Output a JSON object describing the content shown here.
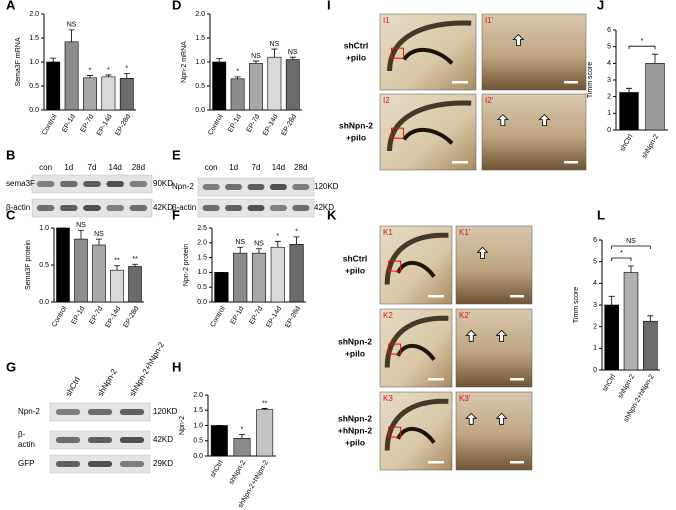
{
  "chart_data": [
    {
      "type": "bar",
      "panel": "A",
      "ylabel": "Sema3F mRNA",
      "categories": [
        "Control",
        "EP-1d",
        "EP-7d",
        "EP-14d",
        "EP-28d"
      ],
      "values": [
        1.0,
        1.42,
        0.67,
        0.69,
        0.66
      ],
      "errors": [
        0.08,
        0.25,
        0.05,
        0.04,
        0.1
      ],
      "annotations": [
        null,
        "NS",
        "*",
        "*",
        "*"
      ],
      "colors": [
        "#000000",
        "#8c8c8c",
        "#a8a8a8",
        "#d9d9d9",
        "#6b6b6b"
      ],
      "ylim": [
        0,
        2.0
      ],
      "yticks": [
        {
          "value": 0,
          "label": "0.0"
        },
        {
          "value": 0.5,
          "label": "0.5"
        },
        {
          "value": 1.0,
          "label": "1.0"
        },
        {
          "value": 1.5,
          "label": "1.5"
        },
        {
          "value": 2.0,
          "label": "2.0"
        }
      ]
    },
    {
      "type": "bar",
      "panel": "D",
      "ylabel": "Npn-2 mRNA",
      "categories": [
        "Control",
        "EP-1d",
        "EP-7d",
        "EP-14d",
        "EP-28d"
      ],
      "values": [
        1.0,
        0.65,
        0.97,
        1.1,
        1.05
      ],
      "errors": [
        0.07,
        0.04,
        0.05,
        0.17,
        0.05
      ],
      "annotations": [
        null,
        "*",
        "NS",
        "NS",
        "NS"
      ],
      "colors": [
        "#000000",
        "#8c8c8c",
        "#a8a8a8",
        "#d9d9d9",
        "#6b6b6b"
      ],
      "ylim": [
        0,
        2.0
      ],
      "yticks": [
        {
          "value": 0,
          "label": "0.0"
        },
        {
          "value": 0.5,
          "label": "0.5"
        },
        {
          "value": 1.0,
          "label": "1.0"
        },
        {
          "value": 1.5,
          "label": "1.5"
        },
        {
          "value": 2.0,
          "label": "2.0"
        }
      ]
    },
    {
      "type": "bar",
      "panel": "C",
      "ylabel": "Sema3F protein",
      "categories": [
        "Control",
        "EP-1d",
        "EP-7d",
        "EP-14d",
        "EP-28d"
      ],
      "values": [
        1.0,
        0.85,
        0.77,
        0.43,
        0.48
      ],
      "errors": [
        0,
        0.12,
        0.08,
        0.06,
        0.03
      ],
      "annotations": [
        null,
        "NS",
        "NS",
        "**",
        "**"
      ],
      "colors": [
        "#000000",
        "#8c8c8c",
        "#a8a8a8",
        "#d9d9d9",
        "#6b6b6b"
      ],
      "ylim": [
        0,
        1.0
      ],
      "yticks": [
        {
          "value": 0,
          "label": "0.0"
        },
        {
          "value": 0.5,
          "label": "0.5"
        },
        {
          "value": 1.0,
          "label": "1.0"
        }
      ]
    },
    {
      "type": "bar",
      "panel": "F",
      "ylabel": "Npn-2 protein",
      "categories": [
        "Control",
        "EP-1d",
        "EP-7d",
        "EP-14d",
        "EP-28d"
      ],
      "values": [
        1.0,
        1.65,
        1.65,
        1.85,
        1.95
      ],
      "errors": [
        0,
        0.2,
        0.15,
        0.2,
        0.25
      ],
      "annotations": [
        null,
        "NS",
        "NS",
        "*",
        "*"
      ],
      "colors": [
        "#000000",
        "#8c8c8c",
        "#a8a8a8",
        "#d9d9d9",
        "#6b6b6b"
      ],
      "ylim": [
        0,
        2.5
      ],
      "yticks": [
        {
          "value": 0,
          "label": "0.0"
        },
        {
          "value": 0.5,
          "label": "0.5"
        },
        {
          "value": 1.0,
          "label": "1.0"
        },
        {
          "value": 1.5,
          "label": "1.5"
        },
        {
          "value": 2.0,
          "label": "2.0"
        },
        {
          "value": 2.5,
          "label": "2.5"
        }
      ]
    },
    {
      "type": "bar",
      "panel": "H",
      "ylabel": "Npn-2",
      "categories": [
        "shCtrl",
        "shNpn-2",
        "shNpn-2+hNpn-2"
      ],
      "values": [
        1.0,
        0.58,
        1.52
      ],
      "errors": [
        0,
        0.12,
        0.04
      ],
      "annotations": [
        null,
        "*",
        "**"
      ],
      "colors": [
        "#000000",
        "#8c8c8c",
        "#c4c4c4"
      ],
      "ylim": [
        0,
        2.0
      ],
      "yticks": [
        {
          "value": 0,
          "label": "0.0"
        },
        {
          "value": 0.5,
          "label": "0.5"
        },
        {
          "value": 1.0,
          "label": "1.0"
        },
        {
          "value": 1.5,
          "label": "1.5"
        },
        {
          "value": 2.0,
          "label": "2.0"
        }
      ]
    },
    {
      "type": "bar",
      "panel": "J",
      "ylabel": "Timm score",
      "categories": [
        "shCtrl",
        "shNpn-2"
      ],
      "values": [
        2.25,
        4.0
      ],
      "errors": [
        0.25,
        0.55
      ],
      "colors": [
        "#000000",
        "#9a9a9a"
      ],
      "ylim": [
        0,
        6
      ],
      "yticks": [
        0,
        1,
        2,
        3,
        4,
        5,
        6
      ],
      "brackets": [
        {
          "from": 0,
          "to": 1,
          "label": "*"
        }
      ]
    },
    {
      "type": "bar",
      "panel": "L",
      "ylabel": "Timm score",
      "categories": [
        "shCtrl",
        "shNpn-2",
        "shNpn-2+hNpn-2"
      ],
      "values": [
        3.0,
        4.5,
        2.25
      ],
      "errors": [
        0.4,
        0.3,
        0.25
      ],
      "colors": [
        "#000000",
        "#b0b0b0",
        "#6b6b6b"
      ],
      "ylim": [
        0,
        6
      ],
      "yticks": [
        0,
        1,
        2,
        3,
        4,
        5,
        6
      ],
      "brackets": [
        {
          "from": 0,
          "to": 1,
          "label": "*"
        },
        {
          "from": 0,
          "to": 2,
          "label": "NS"
        }
      ]
    }
  ],
  "blots": [
    {
      "panel": "B",
      "lanes": [
        "con",
        "1d",
        "7d",
        "14d",
        "28d"
      ],
      "rows": [
        {
          "name": "sema3F",
          "size": "90KD"
        },
        {
          "name": "β-actin",
          "size": "42KD"
        }
      ]
    },
    {
      "panel": "E",
      "lanes": [
        "con",
        "1d",
        "7d",
        "14d",
        "28d"
      ],
      "rows": [
        {
          "name": "Npn-2",
          "size": "120KD"
        },
        {
          "name": "β-actin",
          "size": "42KD"
        }
      ]
    },
    {
      "panel": "G",
      "lanes": [
        "shCtrl",
        "shNpn-2",
        "shNpn-2+hNpn-2"
      ],
      "rows": [
        {
          "name": [
            "Npn-2"
          ],
          "size": "120KD"
        },
        {
          "name": [
            "β-",
            "actin"
          ],
          "size": "42KD"
        },
        {
          "name": [
            "GFP"
          ],
          "size": "29KD"
        }
      ]
    }
  ],
  "micrographs": [
    {
      "panel": "I",
      "rows": [
        {
          "condition": [
            "shCtrl",
            "+pilo"
          ],
          "labels": [
            "I1",
            "I1'"
          ]
        },
        {
          "condition": [
            "shNpn-2",
            "+pilo"
          ],
          "labels": [
            "I2",
            "I2'"
          ]
        }
      ]
    },
    {
      "panel": "K",
      "rows": [
        {
          "condition": [
            "shCtrl",
            "+pilo"
          ],
          "labels": [
            "K1",
            "K1'"
          ]
        },
        {
          "condition": [
            "shNpn-2",
            "+pilo"
          ],
          "labels": [
            "K2",
            "K2'"
          ]
        },
        {
          "condition": [
            "shNpn-2",
            "+hNpn-2",
            "+pilo"
          ],
          "labels": [
            "K3",
            "K3'"
          ]
        }
      ]
    }
  ]
}
